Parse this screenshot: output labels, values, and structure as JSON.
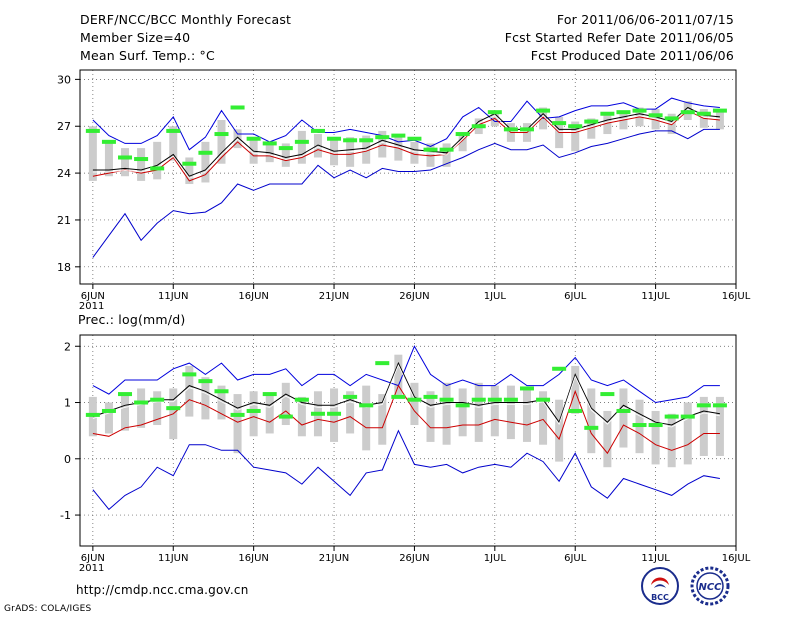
{
  "header": {
    "title": "DERF/NCC/BCC Monthly Forecast",
    "member_size": "Member Size=40",
    "variable": "Mean Surf. Temp.: °C",
    "period": "For 2011/06/06-2011/07/15",
    "start_ref": "Fcst Started Refer Date 2011/06/05",
    "produced": "Fcst Produced Date 2011/06/06"
  },
  "footer": {
    "url": "http://cmdp.ncc.cma.gov.cn",
    "grads": "GrADS: COLA/IGES",
    "logo_bcc": "BCC",
    "logo_ncc": "NCC"
  },
  "colors": {
    "upper_bound": "#0000dd",
    "lower_bound": "#0000cc",
    "ensemble_mean": "#000000",
    "median": "#cc0000",
    "box": "#cccccc",
    "observation": "#33ee33"
  },
  "chart_data": [
    {
      "type": "box",
      "title": "Mean Surf. Temp.: °C",
      "x_tick_labels": [
        "6JUN",
        "11JUN",
        "16JUN",
        "21JUN",
        "26JUN",
        "1JUL",
        "6JUL",
        "11JUL",
        "16JUL"
      ],
      "x_tick_days": [
        1,
        6,
        11,
        16,
        21,
        26,
        31,
        36,
        41
      ],
      "year_label": "2011",
      "xlim": [
        0.2,
        41
      ],
      "y_ticks": [
        "30",
        "27",
        "24",
        "21",
        "18"
      ],
      "ylim": [
        16.9,
        30.6
      ],
      "days": [
        1,
        2,
        3,
        4,
        5,
        6,
        7,
        8,
        9,
        10,
        11,
        12,
        13,
        14,
        15,
        16,
        17,
        18,
        19,
        20,
        21,
        22,
        23,
        24,
        25,
        26,
        27,
        28,
        29,
        30,
        31,
        32,
        33,
        34,
        35,
        36,
        37,
        38,
        39,
        40
      ],
      "series": [
        {
          "name": "ensemble max",
          "values": [
            27.4,
            26.4,
            25.9,
            25.9,
            26.4,
            27.6,
            25.5,
            26.3,
            28.0,
            26.5,
            26.5,
            26.0,
            26.4,
            27.4,
            26.6,
            26.6,
            26.8,
            26.6,
            26.4,
            26.0,
            26.1,
            25.7,
            26.2,
            27.6,
            28.2,
            27.3,
            27.3,
            28.6,
            27.5,
            27.6,
            28.0,
            28.3,
            28.3,
            28.5,
            28.1,
            28.1,
            28.8,
            28.5,
            28.3,
            28.2
          ]
        },
        {
          "name": "ensemble mean",
          "values": [
            24.2,
            24.2,
            24.3,
            24.2,
            24.5,
            25.2,
            23.8,
            24.2,
            25.3,
            26.3,
            25.4,
            25.3,
            25.0,
            25.2,
            25.8,
            25.4,
            25.5,
            25.6,
            26.1,
            25.8,
            25.5,
            25.4,
            25.3,
            26.3,
            27.3,
            27.8,
            26.8,
            26.8,
            27.8,
            26.8,
            26.8,
            27.1,
            27.4,
            27.6,
            27.8,
            27.6,
            27.3,
            28.2,
            27.7,
            27.6
          ]
        },
        {
          "name": "ensemble median",
          "values": [
            23.8,
            24.0,
            24.2,
            24.0,
            24.2,
            25.0,
            23.5,
            23.9,
            25.0,
            26.0,
            25.1,
            25.1,
            24.8,
            25.0,
            25.5,
            25.2,
            25.2,
            25.4,
            25.8,
            25.6,
            25.2,
            25.1,
            25.2,
            26.1,
            27.1,
            27.5,
            26.6,
            26.6,
            27.6,
            26.6,
            26.6,
            26.9,
            27.2,
            27.4,
            27.6,
            27.4,
            27.1,
            28.0,
            27.5,
            27.4
          ]
        },
        {
          "name": "ensemble min",
          "values": [
            18.6,
            20.0,
            21.4,
            19.7,
            20.8,
            21.6,
            21.4,
            21.5,
            22.1,
            23.3,
            22.9,
            23.3,
            23.3,
            23.3,
            24.5,
            23.7,
            24.2,
            23.7,
            24.3,
            24.1,
            24.1,
            24.2,
            24.6,
            25.0,
            25.5,
            25.9,
            25.5,
            25.5,
            25.8,
            25.0,
            25.3,
            25.7,
            25.9,
            26.2,
            26.5,
            26.7,
            26.7,
            26.2,
            26.8,
            26.8
          ]
        },
        {
          "name": "observation",
          "values": [
            26.7,
            26.0,
            25.0,
            24.9,
            24.3,
            26.7,
            24.6,
            25.3,
            26.5,
            28.2,
            26.2,
            25.9,
            25.6,
            26.0,
            26.7,
            26.2,
            26.1,
            26.1,
            26.3,
            26.4,
            26.2,
            25.5,
            25.5,
            26.5,
            27.0,
            27.9,
            26.8,
            26.8,
            28.0,
            27.2,
            27.0,
            27.3,
            27.8,
            27.9,
            28.0,
            27.7,
            27.5,
            27.9,
            27.8,
            28.0
          ]
        },
        {
          "name": "box low",
          "values": [
            23.5,
            23.8,
            23.8,
            23.5,
            23.6,
            24.8,
            23.3,
            23.4,
            24.6,
            25.6,
            24.6,
            24.7,
            24.4,
            24.6,
            25.0,
            24.5,
            24.4,
            24.6,
            25.0,
            24.8,
            24.6,
            24.4,
            24.4,
            25.4,
            26.5,
            27.0,
            26.0,
            26.0,
            26.8,
            25.6,
            25.4,
            26.2,
            26.5,
            26.8,
            27.0,
            26.8,
            26.5,
            27.4,
            26.9,
            26.8
          ]
        },
        {
          "name": "box high",
          "values": [
            27.0,
            26.0,
            25.6,
            25.6,
            26.0,
            27.0,
            25.0,
            26.0,
            27.4,
            26.8,
            26.2,
            25.9,
            25.9,
            26.7,
            26.5,
            26.3,
            26.3,
            26.4,
            26.7,
            26.4,
            26.0,
            25.9,
            25.9,
            26.6,
            27.5,
            28.0,
            27.2,
            27.2,
            28.2,
            27.6,
            27.3,
            27.5,
            27.8,
            28.0,
            28.2,
            28.1,
            27.8,
            28.6,
            28.1,
            28.0
          ]
        }
      ]
    },
    {
      "type": "box",
      "title": "Prec.: log(mm/d)",
      "x_tick_labels": [
        "6JUN",
        "11JUN",
        "16JUN",
        "21JUN",
        "26JUN",
        "1JUL",
        "6JUL",
        "11JUL",
        "16JUL"
      ],
      "x_tick_days": [
        1,
        6,
        11,
        16,
        21,
        26,
        31,
        36,
        41
      ],
      "year_label": "2011",
      "xlim": [
        0.2,
        41
      ],
      "y_ticks": [
        "2",
        "1",
        "0",
        "-1"
      ],
      "ylim": [
        -1.55,
        2.2
      ],
      "days": [
        1,
        2,
        3,
        4,
        5,
        6,
        7,
        8,
        9,
        10,
        11,
        12,
        13,
        14,
        15,
        16,
        17,
        18,
        19,
        20,
        21,
        22,
        23,
        24,
        25,
        26,
        27,
        28,
        29,
        30,
        31,
        32,
        33,
        34,
        35,
        36,
        37,
        38,
        39,
        40
      ],
      "series": [
        {
          "name": "ensemble max",
          "values": [
            1.3,
            1.15,
            1.4,
            1.4,
            1.4,
            1.6,
            1.7,
            1.5,
            1.7,
            1.4,
            1.5,
            1.5,
            1.6,
            1.3,
            1.5,
            1.5,
            1.3,
            1.5,
            1.4,
            1.3,
            2.0,
            1.5,
            1.3,
            1.4,
            1.3,
            1.3,
            1.5,
            1.3,
            1.3,
            1.5,
            1.8,
            1.4,
            1.3,
            1.4,
            1.2,
            1.0,
            1.05,
            1.1,
            1.3,
            1.3
          ]
        },
        {
          "name": "ensemble mean",
          "values": [
            0.75,
            0.85,
            0.95,
            1.0,
            1.05,
            1.05,
            1.3,
            1.2,
            1.05,
            0.9,
            1.0,
            0.95,
            1.15,
            1.0,
            0.95,
            0.95,
            1.05,
            0.95,
            1.0,
            1.7,
            1.1,
            0.95,
            1.0,
            1.0,
            0.95,
            1.0,
            1.0,
            1.0,
            1.05,
            0.65,
            1.5,
            0.9,
            0.65,
            0.95,
            0.8,
            0.65,
            0.6,
            0.75,
            0.85,
            0.8
          ]
        },
        {
          "name": "ensemble median",
          "values": [
            0.45,
            0.4,
            0.55,
            0.6,
            0.7,
            0.8,
            1.05,
            0.95,
            0.8,
            0.65,
            0.75,
            0.65,
            0.85,
            0.6,
            0.7,
            0.65,
            0.75,
            0.55,
            0.55,
            1.3,
            0.85,
            0.55,
            0.55,
            0.6,
            0.6,
            0.7,
            0.65,
            0.6,
            0.7,
            0.35,
            1.2,
            0.45,
            0.1,
            0.6,
            0.45,
            0.25,
            0.15,
            0.25,
            0.45,
            0.45
          ]
        },
        {
          "name": "ensemble min",
          "values": [
            -0.55,
            -0.9,
            -0.65,
            -0.5,
            -0.15,
            -0.3,
            0.25,
            0.25,
            0.15,
            0.15,
            -0.15,
            -0.2,
            -0.25,
            -0.45,
            -0.15,
            -0.4,
            -0.65,
            -0.25,
            -0.2,
            0.5,
            -0.1,
            -0.15,
            -0.1,
            -0.25,
            -0.15,
            -0.1,
            -0.15,
            0.1,
            -0.05,
            -0.4,
            0.1,
            -0.5,
            -0.7,
            -0.35,
            -0.45,
            -0.55,
            -0.65,
            -0.45,
            -0.3,
            -0.35
          ]
        },
        {
          "name": "observation",
          "values": [
            0.78,
            0.85,
            1.15,
            1.0,
            1.05,
            0.9,
            1.5,
            1.38,
            1.2,
            0.78,
            0.85,
            1.15,
            0.75,
            1.05,
            0.8,
            0.8,
            1.1,
            0.95,
            1.7,
            1.1,
            1.05,
            1.1,
            1.05,
            0.95,
            1.05,
            1.05,
            1.05,
            1.25,
            1.05,
            1.6,
            0.85,
            0.55,
            1.15,
            0.85,
            0.6,
            0.6,
            0.75,
            0.75,
            0.95,
            0.95
          ]
        },
        {
          "name": "box low",
          "values": [
            0.4,
            0.45,
            0.5,
            0.55,
            0.6,
            0.35,
            0.75,
            0.7,
            0.7,
            0.1,
            0.4,
            0.45,
            0.6,
            0.4,
            0.4,
            0.3,
            0.45,
            0.15,
            0.25,
            1.1,
            0.6,
            0.3,
            0.25,
            0.4,
            0.3,
            0.4,
            0.35,
            0.3,
            0.25,
            -0.05,
            0.8,
            0.1,
            -0.15,
            0.2,
            0.1,
            -0.1,
            -0.15,
            -0.1,
            0.05,
            0.05
          ]
        },
        {
          "name": "box high",
          "values": [
            1.1,
            1.0,
            1.15,
            1.25,
            1.2,
            1.25,
            1.65,
            1.45,
            1.3,
            1.15,
            1.2,
            1.15,
            1.35,
            1.1,
            1.2,
            1.25,
            1.2,
            1.3,
            1.15,
            1.85,
            1.35,
            1.2,
            1.35,
            1.25,
            1.35,
            1.3,
            1.3,
            1.25,
            1.2,
            1.05,
            1.65,
            1.25,
            0.85,
            1.25,
            1.05,
            0.85,
            0.8,
            1.0,
            1.1,
            1.1
          ]
        }
      ]
    }
  ]
}
